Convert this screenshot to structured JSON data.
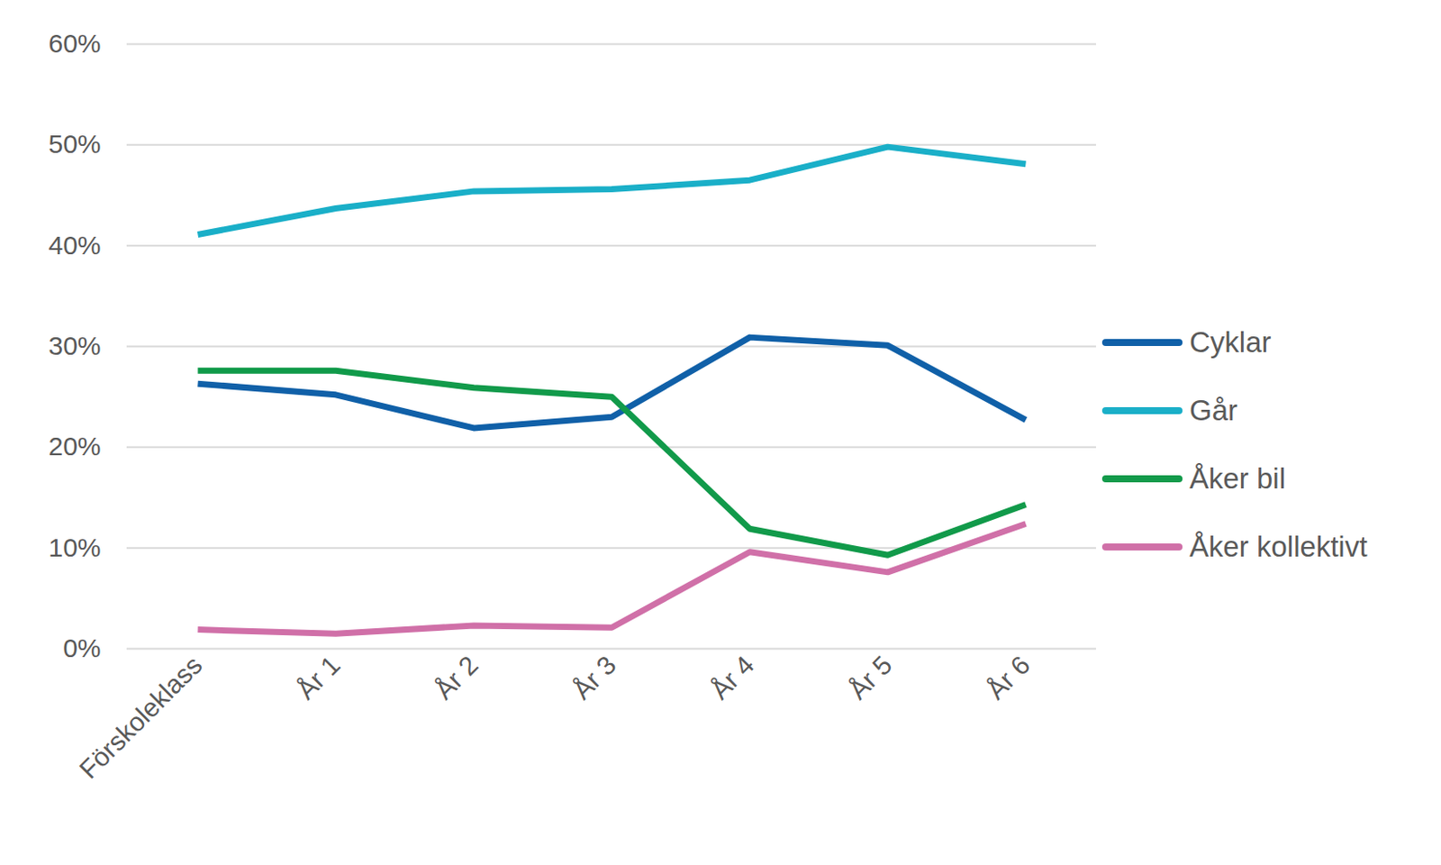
{
  "chart_data": {
    "type": "line",
    "categories": [
      "Förskoleklass",
      "År 1",
      "År 2",
      "År 3",
      "År 4",
      "År 5",
      "År 6"
    ],
    "series": [
      {
        "name": "Cyklar",
        "color": "#1060a8",
        "values": [
          26.3,
          25.2,
          21.9,
          23.0,
          30.9,
          30.1,
          22.7
        ]
      },
      {
        "name": "Går",
        "color": "#1aafc8",
        "values": [
          41.1,
          43.7,
          45.4,
          45.6,
          46.5,
          49.8,
          48.1
        ]
      },
      {
        "name": "Åker bil",
        "color": "#119a4a",
        "values": [
          27.6,
          27.6,
          25.9,
          25.0,
          11.9,
          9.3,
          14.3
        ]
      },
      {
        "name": "Åker kollektivt",
        "color": "#d070a8",
        "values": [
          1.9,
          1.5,
          2.3,
          2.1,
          9.6,
          7.6,
          12.4
        ]
      }
    ],
    "ylim": [
      0,
      60
    ],
    "yticks": [
      {
        "value": 0,
        "label": "0%"
      },
      {
        "value": 10,
        "label": "10%"
      },
      {
        "value": 20,
        "label": "20%"
      },
      {
        "value": 30,
        "label": "30%"
      },
      {
        "value": 40,
        "label": "40%"
      },
      {
        "value": 50,
        "label": "50%"
      },
      {
        "value": 60,
        "label": "60%"
      }
    ],
    "grid": true,
    "legend": "right"
  }
}
